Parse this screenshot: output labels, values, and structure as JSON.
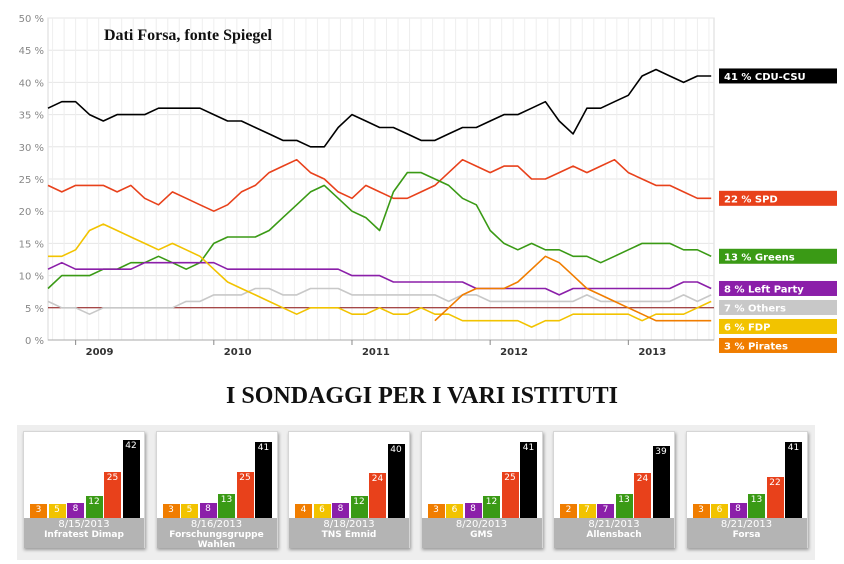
{
  "chart_data": {
    "type": "line",
    "title": "Dati Forsa, fonte Spiegel",
    "ylim": [
      0,
      50
    ],
    "yticks": [
      0,
      5,
      10,
      15,
      20,
      25,
      30,
      35,
      40,
      45,
      50
    ],
    "ytick_labels": [
      "0 %",
      "5 %",
      "10 %",
      "15 %",
      "20 %",
      "25 %",
      "30 %",
      "35 %",
      "40 %",
      "45 %",
      "50 %"
    ],
    "xlim": [
      2008.8,
      2013.62
    ],
    "xticks": [
      2009,
      2010,
      2011,
      2012,
      2013
    ],
    "xtick_labels": [
      "2009",
      "2010",
      "2011",
      "2012",
      "2013"
    ],
    "reference_line": 5,
    "grid": true,
    "legend_placement": "right, at end of each line",
    "series": [
      {
        "name": "CDU-CSU",
        "label": "41 % CDU-CSU",
        "color": "#000000",
        "x": [
          2008.8,
          2008.9,
          2009.0,
          2009.1,
          2009.2,
          2009.3,
          2009.4,
          2009.5,
          2009.6,
          2009.7,
          2009.8,
          2009.9,
          2010.0,
          2010.1,
          2010.2,
          2010.3,
          2010.4,
          2010.5,
          2010.6,
          2010.7,
          2010.8,
          2010.9,
          2011.0,
          2011.1,
          2011.2,
          2011.3,
          2011.4,
          2011.5,
          2011.6,
          2011.7,
          2011.8,
          2011.9,
          2012.0,
          2012.1,
          2012.2,
          2012.3,
          2012.4,
          2012.5,
          2012.6,
          2012.7,
          2012.8,
          2012.9,
          2013.0,
          2013.1,
          2013.2,
          2013.3,
          2013.4,
          2013.5,
          2013.6
        ],
        "y": [
          36,
          37,
          37,
          35,
          34,
          35,
          35,
          35,
          36,
          36,
          36,
          36,
          35,
          34,
          34,
          33,
          32,
          31,
          31,
          30,
          30,
          33,
          35,
          34,
          33,
          33,
          32,
          31,
          31,
          32,
          33,
          33,
          34,
          35,
          35,
          36,
          37,
          34,
          32,
          36,
          36,
          37,
          38,
          41,
          42,
          41,
          40,
          41,
          41
        ]
      },
      {
        "name": "SPD",
        "label": "22 % SPD",
        "color": "#e8411b",
        "x": [
          2008.8,
          2008.9,
          2009.0,
          2009.1,
          2009.2,
          2009.3,
          2009.4,
          2009.5,
          2009.6,
          2009.7,
          2009.8,
          2009.9,
          2010.0,
          2010.1,
          2010.2,
          2010.3,
          2010.4,
          2010.5,
          2010.6,
          2010.7,
          2010.8,
          2010.9,
          2011.0,
          2011.1,
          2011.2,
          2011.3,
          2011.4,
          2011.5,
          2011.6,
          2011.7,
          2011.8,
          2011.9,
          2012.0,
          2012.1,
          2012.2,
          2012.3,
          2012.4,
          2012.5,
          2012.6,
          2012.7,
          2012.8,
          2012.9,
          2013.0,
          2013.1,
          2013.2,
          2013.3,
          2013.4,
          2013.5,
          2013.6
        ],
        "y": [
          24,
          23,
          24,
          24,
          24,
          23,
          24,
          22,
          21,
          23,
          22,
          21,
          20,
          21,
          23,
          24,
          26,
          27,
          28,
          26,
          25,
          23,
          22,
          24,
          23,
          22,
          22,
          23,
          24,
          26,
          28,
          27,
          26,
          27,
          27,
          25,
          25,
          26,
          27,
          26,
          27,
          28,
          26,
          25,
          24,
          24,
          23,
          22,
          22
        ]
      },
      {
        "name": "Greens",
        "label": "13 % Greens",
        "color": "#3a9a15",
        "x": [
          2008.8,
          2008.9,
          2009.0,
          2009.1,
          2009.2,
          2009.3,
          2009.4,
          2009.5,
          2009.6,
          2009.7,
          2009.8,
          2009.9,
          2010.0,
          2010.1,
          2010.2,
          2010.3,
          2010.4,
          2010.5,
          2010.6,
          2010.7,
          2010.8,
          2010.9,
          2011.0,
          2011.1,
          2011.2,
          2011.3,
          2011.4,
          2011.5,
          2011.6,
          2011.7,
          2011.8,
          2011.9,
          2012.0,
          2012.1,
          2012.2,
          2012.3,
          2012.4,
          2012.5,
          2012.6,
          2012.7,
          2012.8,
          2012.9,
          2013.0,
          2013.1,
          2013.2,
          2013.3,
          2013.4,
          2013.5,
          2013.6
        ],
        "y": [
          8,
          10,
          10,
          10,
          11,
          11,
          12,
          12,
          13,
          12,
          11,
          12,
          15,
          16,
          16,
          16,
          17,
          19,
          21,
          23,
          24,
          22,
          20,
          19,
          17,
          23,
          26,
          26,
          25,
          24,
          22,
          21,
          17,
          15,
          14,
          15,
          14,
          14,
          13,
          13,
          12,
          13,
          14,
          15,
          15,
          15,
          14,
          14,
          13
        ]
      },
      {
        "name": "Left Party",
        "label": "8 % Left Party",
        "color": "#8b1fa9",
        "x": [
          2008.8,
          2008.9,
          2009.0,
          2009.1,
          2009.2,
          2009.3,
          2009.4,
          2009.5,
          2009.6,
          2009.7,
          2009.8,
          2009.9,
          2010.0,
          2010.1,
          2010.2,
          2010.3,
          2010.4,
          2010.5,
          2010.6,
          2010.7,
          2010.8,
          2010.9,
          2011.0,
          2011.1,
          2011.2,
          2011.3,
          2011.4,
          2011.5,
          2011.6,
          2011.7,
          2011.8,
          2011.9,
          2012.0,
          2012.1,
          2012.2,
          2012.3,
          2012.4,
          2012.5,
          2012.6,
          2012.7,
          2012.8,
          2012.9,
          2013.0,
          2013.1,
          2013.2,
          2013.3,
          2013.4,
          2013.5,
          2013.6
        ],
        "y": [
          11,
          12,
          11,
          11,
          11,
          11,
          11,
          12,
          12,
          12,
          12,
          12,
          12,
          11,
          11,
          11,
          11,
          11,
          11,
          11,
          11,
          11,
          10,
          10,
          10,
          9,
          9,
          9,
          9,
          9,
          9,
          8,
          8,
          8,
          8,
          8,
          8,
          7,
          8,
          8,
          8,
          8,
          8,
          8,
          8,
          8,
          9,
          9,
          8
        ]
      },
      {
        "name": "Others",
        "label": "7 % Others",
        "color": "#c8c8c8",
        "x": [
          2008.8,
          2008.9,
          2009.0,
          2009.1,
          2009.2,
          2009.3,
          2009.4,
          2009.5,
          2009.6,
          2009.7,
          2009.8,
          2009.9,
          2010.0,
          2010.1,
          2010.2,
          2010.3,
          2010.4,
          2010.5,
          2010.6,
          2010.7,
          2010.8,
          2010.9,
          2011.0,
          2011.1,
          2011.2,
          2011.3,
          2011.4,
          2011.5,
          2011.6,
          2011.7,
          2011.8,
          2011.9,
          2012.0,
          2012.1,
          2012.2,
          2012.3,
          2012.4,
          2012.5,
          2012.6,
          2012.7,
          2012.8,
          2012.9,
          2013.0,
          2013.1,
          2013.2,
          2013.3,
          2013.4,
          2013.5,
          2013.6
        ],
        "y": [
          6,
          5,
          5,
          4,
          5,
          5,
          5,
          5,
          5,
          5,
          6,
          6,
          7,
          7,
          7,
          8,
          8,
          7,
          7,
          8,
          8,
          8,
          7,
          7,
          7,
          7,
          7,
          7,
          7,
          6,
          7,
          7,
          6,
          6,
          6,
          6,
          6,
          6,
          6,
          7,
          6,
          6,
          6,
          6,
          6,
          6,
          7,
          6,
          7
        ]
      },
      {
        "name": "FDP",
        "label": "6 % FDP",
        "color": "#f2c300",
        "x": [
          2008.8,
          2008.9,
          2009.0,
          2009.1,
          2009.2,
          2009.3,
          2009.4,
          2009.5,
          2009.6,
          2009.7,
          2009.8,
          2009.9,
          2010.0,
          2010.1,
          2010.2,
          2010.3,
          2010.4,
          2010.5,
          2010.6,
          2010.7,
          2010.8,
          2010.9,
          2011.0,
          2011.1,
          2011.2,
          2011.3,
          2011.4,
          2011.5,
          2011.6,
          2011.7,
          2011.8,
          2011.9,
          2012.0,
          2012.1,
          2012.2,
          2012.3,
          2012.4,
          2012.5,
          2012.6,
          2012.7,
          2012.8,
          2012.9,
          2013.0,
          2013.1,
          2013.2,
          2013.3,
          2013.4,
          2013.5,
          2013.6
        ],
        "y": [
          13,
          13,
          14,
          17,
          18,
          17,
          16,
          15,
          14,
          15,
          14,
          13,
          11,
          9,
          8,
          7,
          6,
          5,
          4,
          5,
          5,
          5,
          4,
          4,
          5,
          4,
          4,
          5,
          4,
          4,
          3,
          3,
          3,
          3,
          3,
          2,
          3,
          3,
          4,
          4,
          4,
          4,
          4,
          3,
          4,
          4,
          4,
          5,
          6
        ]
      },
      {
        "name": "Pirates",
        "label": "3 % Pirates",
        "color": "#f07d00",
        "x": [
          2011.6,
          2011.7,
          2011.8,
          2011.9,
          2012.0,
          2012.1,
          2012.2,
          2012.3,
          2012.4,
          2012.5,
          2012.6,
          2012.7,
          2012.8,
          2012.9,
          2013.0,
          2013.1,
          2013.2,
          2013.3,
          2013.4,
          2013.5,
          2013.6
        ],
        "y": [
          3,
          5,
          7,
          8,
          8,
          8,
          9,
          11,
          13,
          12,
          10,
          8,
          7,
          6,
          5,
          4,
          3,
          3,
          3,
          3,
          3
        ]
      }
    ]
  },
  "section_title": "I SONDAGGI PER I VARI ISTITUTI",
  "poll_party_order": [
    "Pirates",
    "FDP",
    "Left Party",
    "Greens",
    "SPD",
    "CDU-CSU"
  ],
  "poll_colors": [
    "#f07d00",
    "#f2c300",
    "#8b1fa9",
    "#3a9a15",
    "#e8411b",
    "#000000"
  ],
  "poll_scale_max": 42,
  "polls": [
    {
      "date": "8/15/2013",
      "institute": "Infratest Dimap",
      "values": [
        3,
        5,
        8,
        12,
        25,
        42
      ]
    },
    {
      "date": "8/16/2013",
      "institute": "Forschungsgruppe Wahlen",
      "values": [
        3,
        5,
        8,
        13,
        25,
        41
      ]
    },
    {
      "date": "8/18/2013",
      "institute": "TNS Emnid",
      "values": [
        4,
        6,
        8,
        12,
        24,
        40
      ]
    },
    {
      "date": "8/20/2013",
      "institute": "GMS",
      "values": [
        3,
        6,
        8,
        12,
        25,
        41
      ]
    },
    {
      "date": "8/21/2013",
      "institute": "Allensbach",
      "values": [
        2,
        7,
        7,
        13,
        24,
        39
      ]
    },
    {
      "date": "8/21/2013",
      "institute": "Forsa",
      "values": [
        3,
        6,
        8,
        13,
        22,
        41
      ]
    }
  ]
}
